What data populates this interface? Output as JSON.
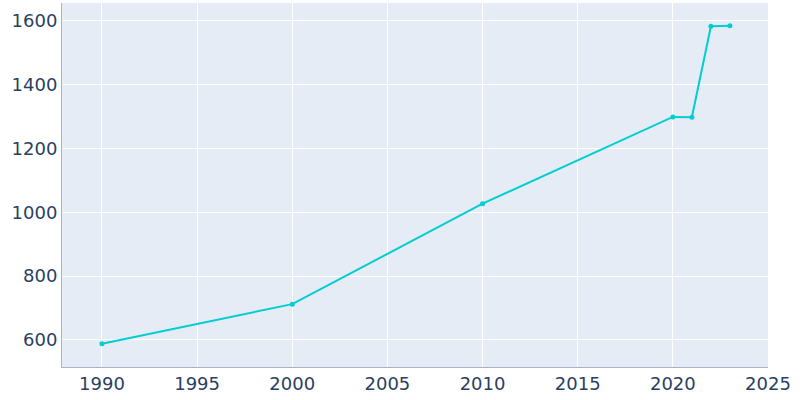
{
  "chart_data": {
    "type": "line",
    "x": [
      1990,
      2000,
      2010,
      2020,
      2021,
      2022,
      2023
    ],
    "values": [
      588,
      712,
      1027,
      1299,
      1298,
      1583,
      1585
    ],
    "color": "#00ced1",
    "marker": "circle",
    "xlim": [
      1987.9,
      2025
    ],
    "xticks": [
      1990,
      1995,
      2000,
      2005,
      2010,
      2015,
      2020,
      2025
    ],
    "ylim": [
      515,
      1656
    ],
    "yticks": [
      600,
      800,
      1000,
      1200,
      1400,
      1600
    ],
    "grid": true
  }
}
